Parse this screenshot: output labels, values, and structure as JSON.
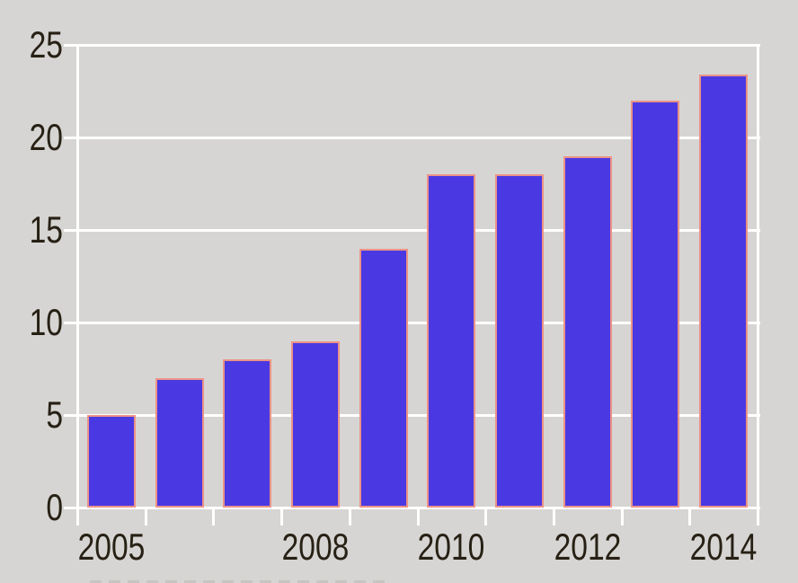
{
  "colors": {
    "background": "#d6d5d3",
    "bar_fill": "#4a39e2",
    "bar_stroke": "#ec9287",
    "grid": "#ffffff",
    "text": "#272014"
  },
  "chart_data": {
    "type": "bar",
    "title": "",
    "xlabel": "",
    "ylabel": "",
    "categories": [
      "2005",
      "2006",
      "2007",
      "2008",
      "2009",
      "2010",
      "2011",
      "2012",
      "2013",
      "2014"
    ],
    "values": [
      5,
      7,
      8,
      9,
      14,
      18,
      18,
      19,
      22,
      23.4
    ],
    "ylim": [
      0,
      25
    ],
    "y_ticks": [
      0,
      5,
      10,
      15,
      20,
      25
    ],
    "x_tick_labels": [
      {
        "index": 0,
        "label": "2005"
      },
      {
        "index": 3,
        "label": "2008"
      },
      {
        "index": 5,
        "label": "2010"
      },
      {
        "index": 7,
        "label": "2012"
      },
      {
        "index": 9,
        "label": "2014"
      }
    ],
    "grid": true,
    "legend": false,
    "bar_outline": true
  }
}
